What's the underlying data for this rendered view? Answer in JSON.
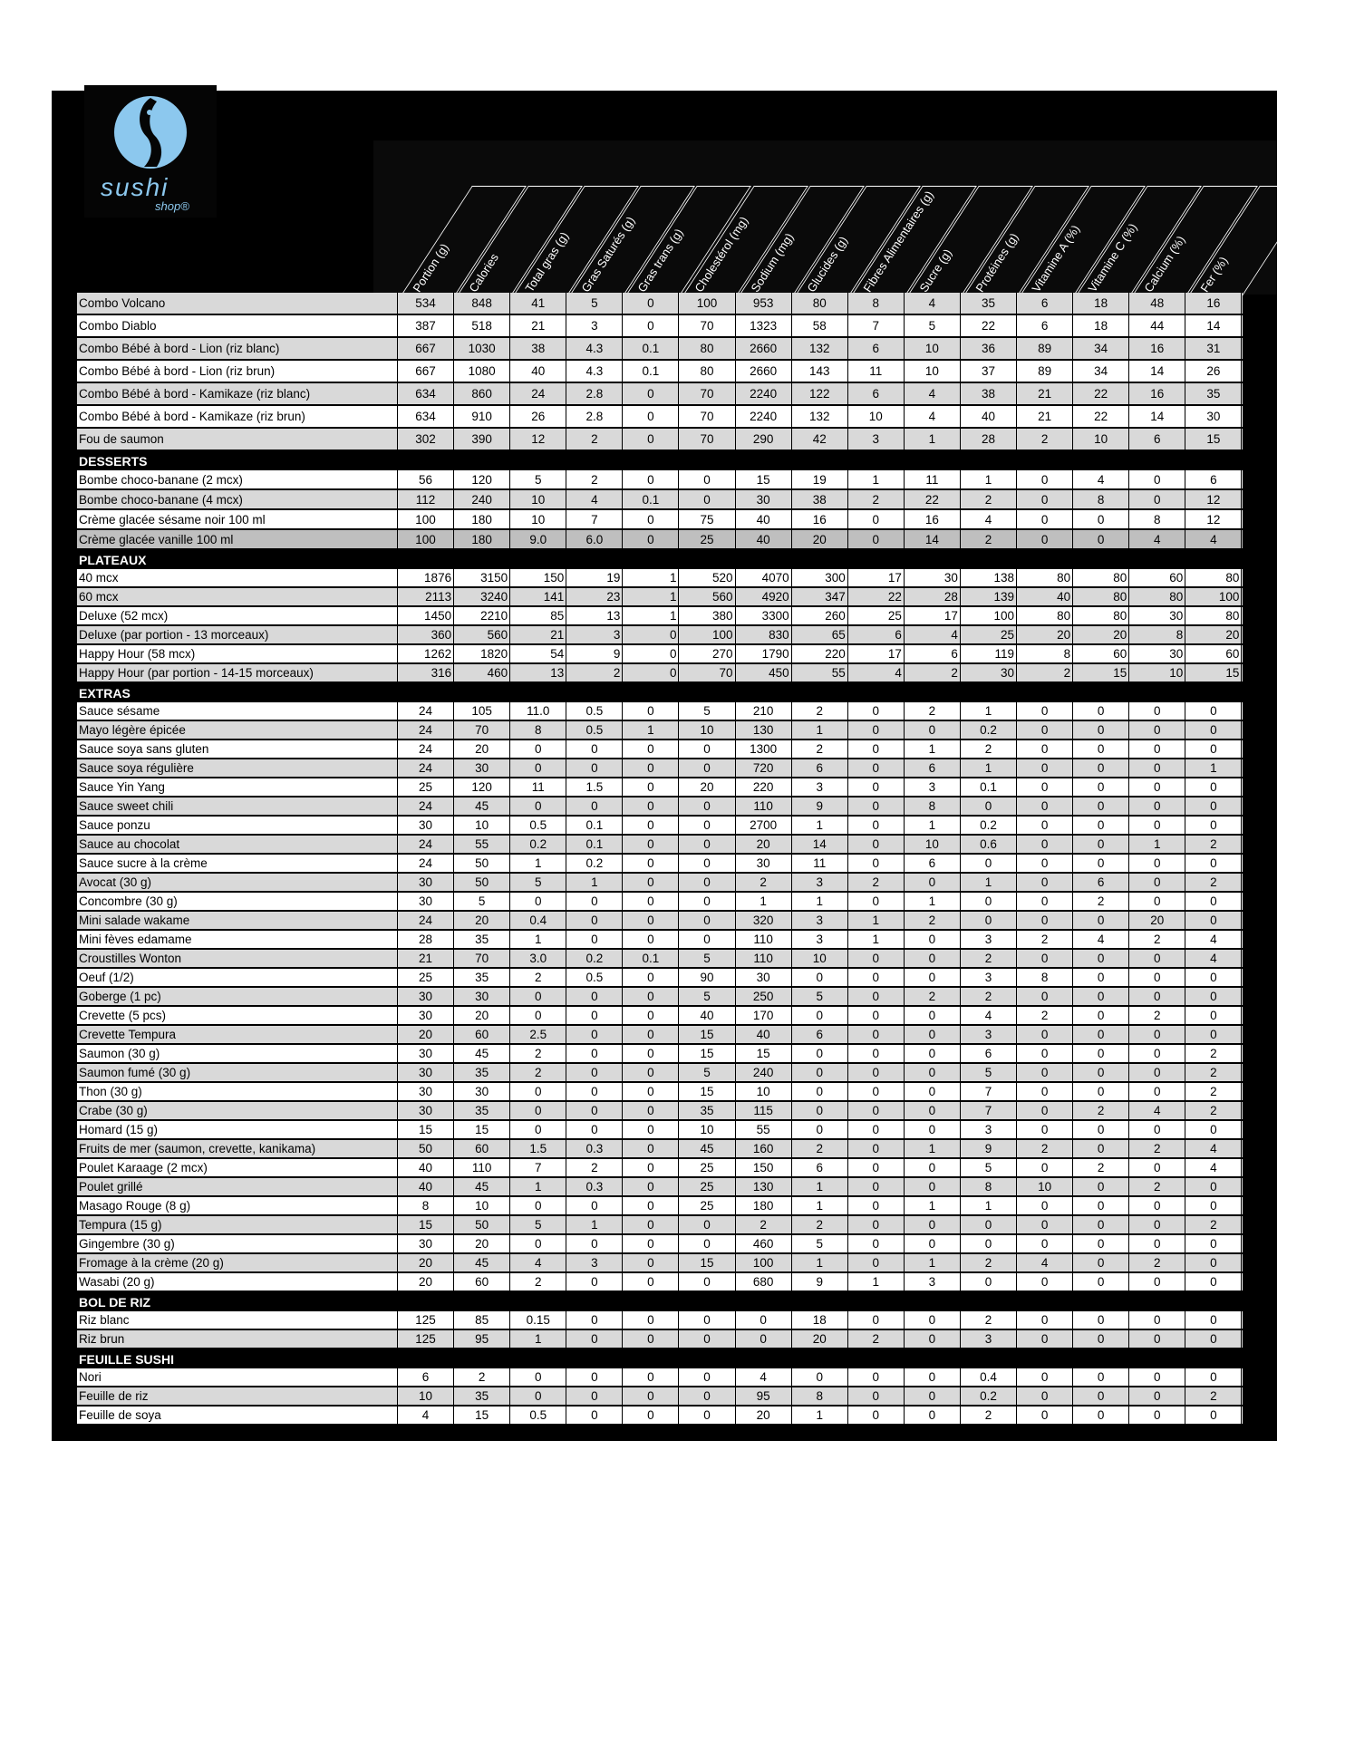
{
  "brand": {
    "name": "sushi",
    "sub": "shop",
    "logo_color": "#8cc8ee"
  },
  "columns": [
    "Portion (g)",
    "Calories",
    "Total gras (g)",
    "Gras Saturés (g)",
    "Gras trans (g)",
    "Cholestérol (mg)",
    "Sodium (mg)",
    "Glucides (g)",
    "Fibres Alimentaires (g)",
    "Sucre (g)",
    "Protéines (g)",
    "Vitamine A (%)",
    "Vitamine C (%)",
    "Calcium (%)",
    "Fer (%)"
  ],
  "sections": [
    {
      "title": "",
      "rows": [
        [
          "Combo Volcano",
          "534",
          "848",
          "41",
          "5",
          "0",
          "100",
          "953",
          "80",
          "8",
          "4",
          "35",
          "6",
          "18",
          "48",
          "16"
        ],
        [
          "Combo Diablo",
          "387",
          "518",
          "21",
          "3",
          "0",
          "70",
          "1323",
          "58",
          "7",
          "5",
          "22",
          "6",
          "18",
          "44",
          "14"
        ],
        [
          "Combo Bébé à bord - Lion (riz blanc)",
          "667",
          "1030",
          "38",
          "4.3",
          "0.1",
          "80",
          "2660",
          "132",
          "6",
          "10",
          "36",
          "89",
          "34",
          "16",
          "31"
        ],
        [
          "Combo Bébé à bord - Lion (riz brun)",
          "667",
          "1080",
          "40",
          "4.3",
          "0.1",
          "80",
          "2660",
          "143",
          "11",
          "10",
          "37",
          "89",
          "34",
          "14",
          "26"
        ],
        [
          "Combo Bébé à bord - Kamikaze (riz blanc)",
          "634",
          "860",
          "24",
          "2.8",
          "0",
          "70",
          "2240",
          "122",
          "6",
          "4",
          "38",
          "21",
          "22",
          "16",
          "35"
        ],
        [
          "Combo Bébé à bord - Kamikaze (riz brun)",
          "634",
          "910",
          "26",
          "2.8",
          "0",
          "70",
          "2240",
          "132",
          "10",
          "4",
          "40",
          "21",
          "22",
          "14",
          "30"
        ],
        [
          "Fou de saumon",
          "302",
          "390",
          "12",
          "2",
          "0",
          "70",
          "290",
          "42",
          "3",
          "1",
          "28",
          "2",
          "10",
          "6",
          "15"
        ]
      ]
    },
    {
      "title": "DESSERTS",
      "rows": [
        [
          "Bombe choco-banane (2 mcx)",
          "56",
          "120",
          "5",
          "2",
          "0",
          "0",
          "15",
          "19",
          "1",
          "11",
          "1",
          "0",
          "4",
          "0",
          "6"
        ],
        [
          "Bombe choco-banane (4 mcx)",
          "112",
          "240",
          "10",
          "4",
          "0.1",
          "0",
          "30",
          "38",
          "2",
          "22",
          "2",
          "0",
          "8",
          "0",
          "12"
        ],
        [
          "Crème glacée sésame noir 100 ml",
          "100",
          "180",
          "10",
          "7",
          "0",
          "75",
          "40",
          "16",
          "0",
          "16",
          "4",
          "0",
          "0",
          "8",
          "12"
        ],
        [
          "Crème glacée vanille 100 ml",
          "100",
          "180",
          "9.0",
          "6.0",
          "0",
          "25",
          "40",
          "20",
          "0",
          "14",
          "2",
          "0",
          "0",
          "4",
          "4"
        ]
      ]
    },
    {
      "title": "PLATEAUX",
      "rows": [
        [
          "40 mcx",
          "1876",
          "3150",
          "150",
          "19",
          "1",
          "520",
          "4070",
          "300",
          "17",
          "30",
          "138",
          "80",
          "80",
          "60",
          "80"
        ],
        [
          "60 mcx",
          "2113",
          "3240",
          "141",
          "23",
          "1",
          "560",
          "4920",
          "347",
          "22",
          "28",
          "139",
          "40",
          "80",
          "80",
          "100"
        ],
        [
          "Deluxe (52 mcx)",
          "1450",
          "2210",
          "85",
          "13",
          "1",
          "380",
          "3300",
          "260",
          "25",
          "17",
          "100",
          "80",
          "80",
          "30",
          "80"
        ],
        [
          "Deluxe (par portion - 13 morceaux)",
          "360",
          "560",
          "21",
          "3",
          "0",
          "100",
          "830",
          "65",
          "6",
          "4",
          "25",
          "20",
          "20",
          "8",
          "20"
        ],
        [
          "Happy Hour (58 mcx)",
          "1262",
          "1820",
          "54",
          "9",
          "0",
          "270",
          "1790",
          "220",
          "17",
          "6",
          "119",
          "8",
          "60",
          "30",
          "60"
        ],
        [
          "Happy Hour (par portion - 14-15 morceaux)",
          "316",
          "460",
          "13",
          "2",
          "0",
          "70",
          "450",
          "55",
          "4",
          "2",
          "30",
          "2",
          "15",
          "10",
          "15"
        ]
      ]
    },
    {
      "title": "EXTRAS",
      "rows": [
        [
          "Sauce sésame",
          "24",
          "105",
          "11.0",
          "0.5",
          "0",
          "5",
          "210",
          "2",
          "0",
          "2",
          "1",
          "0",
          "0",
          "0",
          "0"
        ],
        [
          "Mayo légère épicée",
          "24",
          "70",
          "8",
          "0.5",
          "1",
          "10",
          "130",
          "1",
          "0",
          "0",
          "0.2",
          "0",
          "0",
          "0",
          "0"
        ],
        [
          "Sauce soya sans gluten",
          "24",
          "20",
          "0",
          "0",
          "0",
          "0",
          "1300",
          "2",
          "0",
          "1",
          "2",
          "0",
          "0",
          "0",
          "0"
        ],
        [
          "Sauce soya régulière",
          "24",
          "30",
          "0",
          "0",
          "0",
          "0",
          "720",
          "6",
          "0",
          "6",
          "1",
          "0",
          "0",
          "0",
          "1"
        ],
        [
          "Sauce Yin Yang",
          "25",
          "120",
          "11",
          "1.5",
          "0",
          "20",
          "220",
          "3",
          "0",
          "3",
          "0.1",
          "0",
          "0",
          "0",
          "0"
        ],
        [
          "Sauce sweet chili",
          "24",
          "45",
          "0",
          "0",
          "0",
          "0",
          "110",
          "9",
          "0",
          "8",
          "0",
          "0",
          "0",
          "0",
          "0"
        ],
        [
          "Sauce ponzu",
          "30",
          "10",
          "0.5",
          "0.1",
          "0",
          "0",
          "2700",
          "1",
          "0",
          "1",
          "0.2",
          "0",
          "0",
          "0",
          "0"
        ],
        [
          "Sauce au chocolat",
          "24",
          "55",
          "0.2",
          "0.1",
          "0",
          "0",
          "20",
          "14",
          "0",
          "10",
          "0.6",
          "0",
          "0",
          "1",
          "2"
        ],
        [
          "Sauce sucre à la crème",
          "24",
          "50",
          "1",
          "0.2",
          "0",
          "0",
          "30",
          "11",
          "0",
          "6",
          "0",
          "0",
          "0",
          "0",
          "0"
        ],
        [
          "Avocat (30 g)",
          "30",
          "50",
          "5",
          "1",
          "0",
          "0",
          "2",
          "3",
          "2",
          "0",
          "1",
          "0",
          "6",
          "0",
          "2"
        ],
        [
          "Concombre (30 g)",
          "30",
          "5",
          "0",
          "0",
          "0",
          "0",
          "1",
          "1",
          "0",
          "1",
          "0",
          "0",
          "2",
          "0",
          "0"
        ],
        [
          "Mini salade wakame",
          "24",
          "20",
          "0.4",
          "0",
          "0",
          "0",
          "320",
          "3",
          "1",
          "2",
          "0",
          "0",
          "0",
          "20",
          "0"
        ],
        [
          "Mini fèves edamame",
          "28",
          "35",
          "1",
          "0",
          "0",
          "0",
          "110",
          "3",
          "1",
          "0",
          "3",
          "2",
          "4",
          "2",
          "4"
        ],
        [
          "Croustilles Wonton",
          "21",
          "70",
          "3.0",
          "0.2",
          "0.1",
          "5",
          "110",
          "10",
          "0",
          "0",
          "2",
          "0",
          "0",
          "0",
          "4"
        ],
        [
          "Oeuf (1/2)",
          "25",
          "35",
          "2",
          "0.5",
          "0",
          "90",
          "30",
          "0",
          "0",
          "0",
          "3",
          "8",
          "0",
          "0",
          "0"
        ],
        [
          "Goberge (1 pc)",
          "30",
          "30",
          "0",
          "0",
          "0",
          "5",
          "250",
          "5",
          "0",
          "2",
          "2",
          "0",
          "0",
          "0",
          "0"
        ],
        [
          "Crevette (5 pcs)",
          "30",
          "20",
          "0",
          "0",
          "0",
          "40",
          "170",
          "0",
          "0",
          "0",
          "4",
          "2",
          "0",
          "2",
          "0"
        ],
        [
          "Crevette Tempura",
          "20",
          "60",
          "2.5",
          "0",
          "0",
          "15",
          "40",
          "6",
          "0",
          "0",
          "3",
          "0",
          "0",
          "0",
          "0"
        ],
        [
          "Saumon (30 g)",
          "30",
          "45",
          "2",
          "0",
          "0",
          "15",
          "15",
          "0",
          "0",
          "0",
          "6",
          "0",
          "0",
          "0",
          "2"
        ],
        [
          "Saumon fumé (30 g)",
          "30",
          "35",
          "2",
          "0",
          "0",
          "5",
          "240",
          "0",
          "0",
          "0",
          "5",
          "0",
          "0",
          "0",
          "2"
        ],
        [
          "Thon (30 g)",
          "30",
          "30",
          "0",
          "0",
          "0",
          "15",
          "10",
          "0",
          "0",
          "0",
          "7",
          "0",
          "0",
          "0",
          "2"
        ],
        [
          "Crabe (30 g)",
          "30",
          "35",
          "0",
          "0",
          "0",
          "35",
          "115",
          "0",
          "0",
          "0",
          "7",
          "0",
          "2",
          "4",
          "2"
        ],
        [
          "Homard (15 g)",
          "15",
          "15",
          "0",
          "0",
          "0",
          "10",
          "55",
          "0",
          "0",
          "0",
          "3",
          "0",
          "0",
          "0",
          "0"
        ],
        [
          "Fruits de mer (saumon, crevette, kanikama)",
          "50",
          "60",
          "1.5",
          "0.3",
          "0",
          "45",
          "160",
          "2",
          "0",
          "1",
          "9",
          "2",
          "0",
          "2",
          "4"
        ],
        [
          "Poulet Karaage (2 mcx)",
          "40",
          "110",
          "7",
          "2",
          "0",
          "25",
          "150",
          "6",
          "0",
          "0",
          "5",
          "0",
          "2",
          "0",
          "4"
        ],
        [
          "Poulet grillé",
          "40",
          "45",
          "1",
          "0.3",
          "0",
          "25",
          "130",
          "1",
          "0",
          "0",
          "8",
          "10",
          "0",
          "2",
          "0"
        ],
        [
          "Masago Rouge (8 g)",
          "8",
          "10",
          "0",
          "0",
          "0",
          "25",
          "180",
          "1",
          "0",
          "1",
          "1",
          "0",
          "0",
          "0",
          "0"
        ],
        [
          "Tempura (15 g)",
          "15",
          "50",
          "5",
          "1",
          "0",
          "0",
          "2",
          "2",
          "0",
          "0",
          "0",
          "0",
          "0",
          "0",
          "2"
        ],
        [
          "Gingembre (30 g)",
          "30",
          "20",
          "0",
          "0",
          "0",
          "0",
          "460",
          "5",
          "0",
          "0",
          "0",
          "0",
          "0",
          "0",
          "0"
        ],
        [
          "Fromage à la crème (20 g)",
          "20",
          "45",
          "4",
          "3",
          "0",
          "15",
          "100",
          "1",
          "0",
          "1",
          "2",
          "4",
          "0",
          "2",
          "0"
        ],
        [
          "Wasabi (20 g)",
          "20",
          "60",
          "2",
          "0",
          "0",
          "0",
          "680",
          "9",
          "1",
          "3",
          "0",
          "0",
          "0",
          "0",
          "0"
        ]
      ]
    },
    {
      "title": "BOL DE RIZ",
      "rows": [
        [
          "Riz blanc",
          "125",
          "85",
          "0.15",
          "0",
          "0",
          "0",
          "0",
          "18",
          "0",
          "0",
          "2",
          "0",
          "0",
          "0",
          "0"
        ],
        [
          "Riz brun",
          "125",
          "95",
          "1",
          "0",
          "0",
          "0",
          "0",
          "20",
          "2",
          "0",
          "3",
          "0",
          "0",
          "0",
          "0"
        ]
      ]
    },
    {
      "title": "FEUILLE SUSHI",
      "rows": [
        [
          "Nori",
          "6",
          "2",
          "0",
          "0",
          "0",
          "0",
          "4",
          "0",
          "0",
          "0",
          "0.4",
          "0",
          "0",
          "0",
          "0"
        ],
        [
          "Feuille de riz",
          "10",
          "35",
          "0",
          "0",
          "0",
          "0",
          "95",
          "8",
          "0",
          "0",
          "0.2",
          "0",
          "0",
          "0",
          "2"
        ],
        [
          "Feuille de soya",
          "4",
          "15",
          "0.5",
          "0",
          "0",
          "0",
          "20",
          "1",
          "0",
          "0",
          "2",
          "0",
          "0",
          "0",
          "0"
        ]
      ]
    }
  ]
}
